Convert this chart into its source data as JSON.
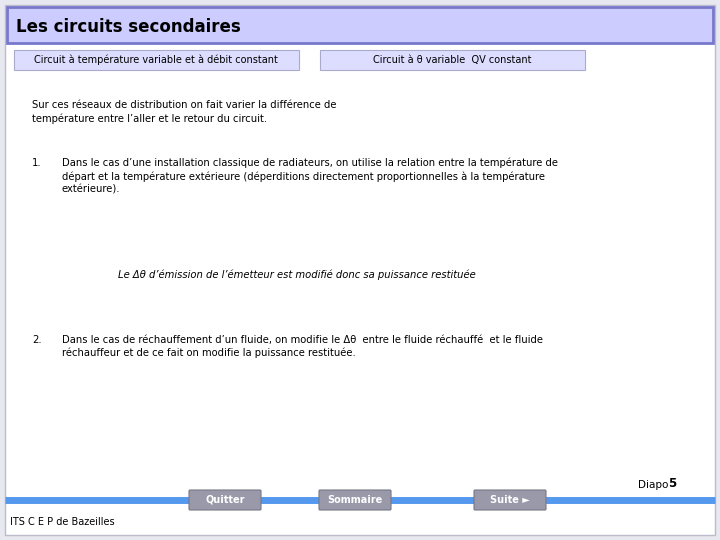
{
  "bg_color": "#e8e8f0",
  "title": "Les circuits secondaires",
  "title_bg": "#ccccff",
  "title_border": "#7777cc",
  "tab1_text": "Circuit à température variable et à débit constant",
  "tab2_text": "Circuit à θ variable  QV constant",
  "tab_bg": "#ddddff",
  "tab_border": "#aaaacc",
  "body_bg": "#ffffff",
  "para0_line1": "Sur ces réseaux de distribution on fait varier la différence de",
  "para0_line2": "température entre l’aller et le retour du circuit.",
  "item1_num": "1.",
  "item1_line1": "Dans le cas d’une installation classique de radiateurs, on utilise la relation entre la température de",
  "item1_line2": "départ et la température extérieure (déperditions directement proportionnelles à la température",
  "item1_line3": "extérieure).",
  "center_text": "Le Δθ d’émission de l’émetteur est modifié donc sa puissance restituée",
  "item2_num": "2.",
  "item2_line1": "Dans le cas de réchauffement d’un fluide, on modifie le Δθ  entre le fluide réchauffé  et le fluide",
  "item2_line2": "réchauffeur et de ce fait on modifie la puissance restituée.",
  "diapo_text": "Diapo ",
  "diapo_num": "5",
  "footer_left": "ITS C E P de Bazeilles",
  "btn1": "Quitter",
  "btn2": "Sommaire",
  "btn3": "Suite ►",
  "btn_bg": "#9999aa",
  "btn_text_color": "#ffffff",
  "line_color": "#5599ee",
  "text_color": "#000000",
  "small_font": 7.0,
  "body_font": 7.2
}
